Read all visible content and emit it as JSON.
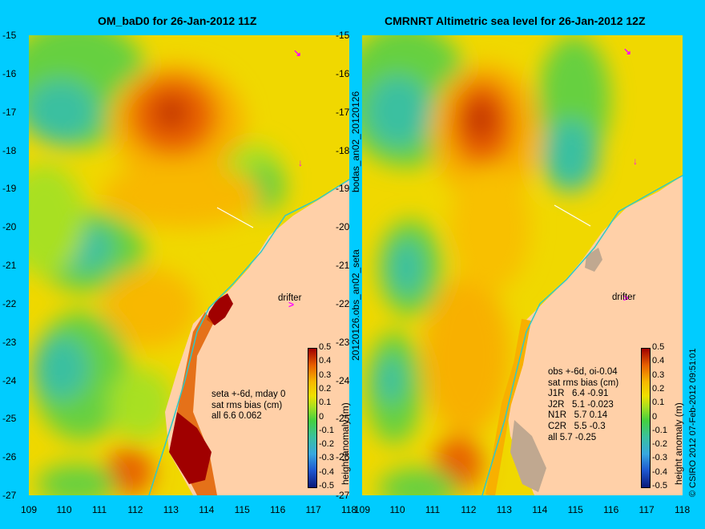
{
  "chart_data": [
    {
      "type": "heatmap",
      "title": "OM_baD0 for 26-Jan-2012 11Z",
      "xlim": [
        109,
        118
      ],
      "ylim": [
        -27,
        -15
      ],
      "x_ticks": [
        "109",
        "110",
        "111",
        "112",
        "113",
        "114",
        "115",
        "116",
        "117",
        "118"
      ],
      "y_ticks": [
        "-15",
        "-16",
        "-17",
        "-18",
        "-19",
        "-20",
        "-21",
        "-22",
        "-23",
        "-24",
        "-25",
        "-26",
        "-27"
      ],
      "colorbar": {
        "label": "height anomaly (m)",
        "ticks": [
          "0.5",
          "0.4",
          "0.3",
          "0.2",
          "0.1",
          "0",
          "-0.1",
          "-0.2",
          "-0.3",
          "-0.4",
          "-0.5"
        ],
        "range": [
          -0.5,
          0.5
        ]
      },
      "annotation_lines": [
        "seta +-6d, mday 0",
        "sat rms bias (cm)",
        "all 6.6 0.062"
      ],
      "drifter_label": "drifter"
    },
    {
      "type": "heatmap",
      "title": "CMRNRT Altimetric sea level  for 26-Jan-2012 12Z",
      "xlim": [
        109,
        118
      ],
      "ylim": [
        -27,
        -15
      ],
      "x_ticks": [
        "109",
        "110",
        "111",
        "112",
        "113",
        "114",
        "115",
        "116",
        "117",
        "118"
      ],
      "y_ticks": [
        "-15",
        "-16",
        "-17",
        "-18",
        "-19",
        "-20",
        "-21",
        "-22",
        "-23",
        "-24",
        "-25",
        "-26",
        "-27"
      ],
      "colorbar": {
        "label": "height anomaly (m)",
        "ticks": [
          "0.5",
          "0.4",
          "0.3",
          "0.2",
          "0.1",
          "0",
          "-0.1",
          "-0.2",
          "-0.3",
          "-0.4",
          "-0.5"
        ],
        "range": [
          -0.5,
          0.5
        ]
      },
      "annotation_lines": [
        "obs +-6d, oi-0.04",
        "sat rms bias (cm)",
        "J1R   6.4 -0.91",
        "J2R   5.1 -0.023",
        "N1R   5.7 0.14",
        "C2R   5.5 -0.3",
        "all 5.7 -0.25"
      ],
      "drifter_label": "drifter"
    }
  ],
  "side_labels": {
    "top": "bodas_an02_20120126",
    "bottom": "20120126.obs_an02_seta"
  },
  "copyright": "© CSIRO 2012   07-Feb-2012 09:51:01"
}
